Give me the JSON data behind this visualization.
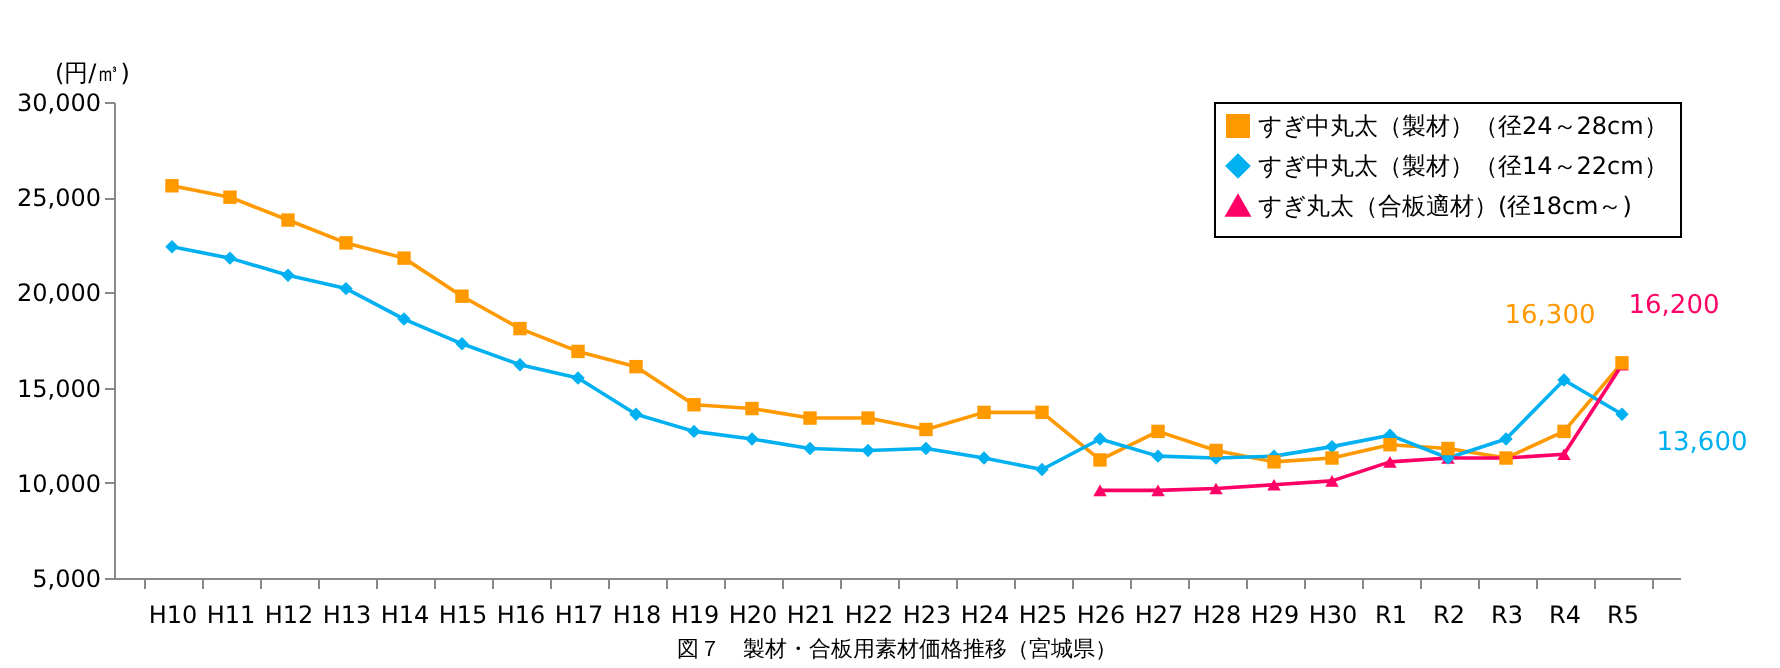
{
  "chart_data": {
    "type": "line",
    "title": "図７　製材・合板用素材価格推移（宮城県）",
    "ylabel": "(円/㎥)",
    "categories": [
      "H10",
      "H11",
      "H12",
      "H13",
      "H14",
      "H15",
      "H16",
      "H17",
      "H18",
      "H19",
      "H20",
      "H21",
      "H22",
      "H23",
      "H24",
      "H25",
      "H26",
      "H27",
      "H28",
      "H29",
      "H30",
      "R1",
      "R2",
      "R3",
      "R4",
      "R5"
    ],
    "ylim": [
      5000,
      30000
    ],
    "yticks": [
      {
        "value": 5000,
        "label": "5,000"
      },
      {
        "value": 10000,
        "label": "10,000"
      },
      {
        "value": 15000,
        "label": "15,000"
      },
      {
        "value": 20000,
        "label": "20,000"
      },
      {
        "value": 25000,
        "label": "25,000"
      },
      {
        "value": 30000,
        "label": "30,000"
      }
    ],
    "grid": false,
    "legend": "top right",
    "series": [
      {
        "name": "すぎ中丸太（製材）（径24～28cm）",
        "color": "#ff9900",
        "marker": "square",
        "values": [
          25600,
          25000,
          23800,
          22600,
          21800,
          19800,
          18100,
          16900,
          16100,
          14100,
          13900,
          13400,
          13400,
          12800,
          13700,
          13700,
          11200,
          12700,
          11700,
          11100,
          11300,
          12000,
          11800,
          11300,
          12700,
          16300
        ],
        "value_labels": [
          null,
          null,
          null,
          null,
          null,
          null,
          null,
          null,
          null,
          null,
          null,
          null,
          null,
          null,
          null,
          null,
          null,
          null,
          null,
          null,
          null,
          null,
          null,
          null,
          null,
          "16,300"
        ]
      },
      {
        "name": "すぎ中丸太（製材）（径14～22cm）",
        "color": "#00b0f0",
        "marker": "diamond",
        "values": [
          22400,
          21800,
          20900,
          20200,
          18600,
          17300,
          16200,
          15500,
          13600,
          12700,
          12300,
          11800,
          11700,
          11800,
          11300,
          10700,
          12300,
          11400,
          11300,
          11400,
          11900,
          12500,
          11300,
          12300,
          15400,
          13600
        ],
        "value_labels": [
          null,
          null,
          null,
          null,
          null,
          null,
          null,
          null,
          null,
          null,
          null,
          null,
          null,
          null,
          null,
          null,
          null,
          null,
          null,
          null,
          null,
          null,
          null,
          null,
          null,
          "13,600"
        ]
      },
      {
        "name": "すぎ丸太（合板適材）(径18cm～)",
        "color": "#ff0066",
        "marker": "triangle",
        "values": [
          null,
          null,
          null,
          null,
          null,
          null,
          null,
          null,
          null,
          null,
          null,
          null,
          null,
          null,
          null,
          null,
          9600,
          9600,
          9700,
          9900,
          10100,
          11100,
          11300,
          11300,
          11500,
          16200
        ],
        "value_labels": [
          null,
          null,
          null,
          null,
          null,
          null,
          null,
          null,
          null,
          null,
          null,
          null,
          null,
          null,
          null,
          null,
          null,
          null,
          null,
          null,
          null,
          null,
          null,
          null,
          null,
          "16,200"
        ]
      }
    ]
  }
}
